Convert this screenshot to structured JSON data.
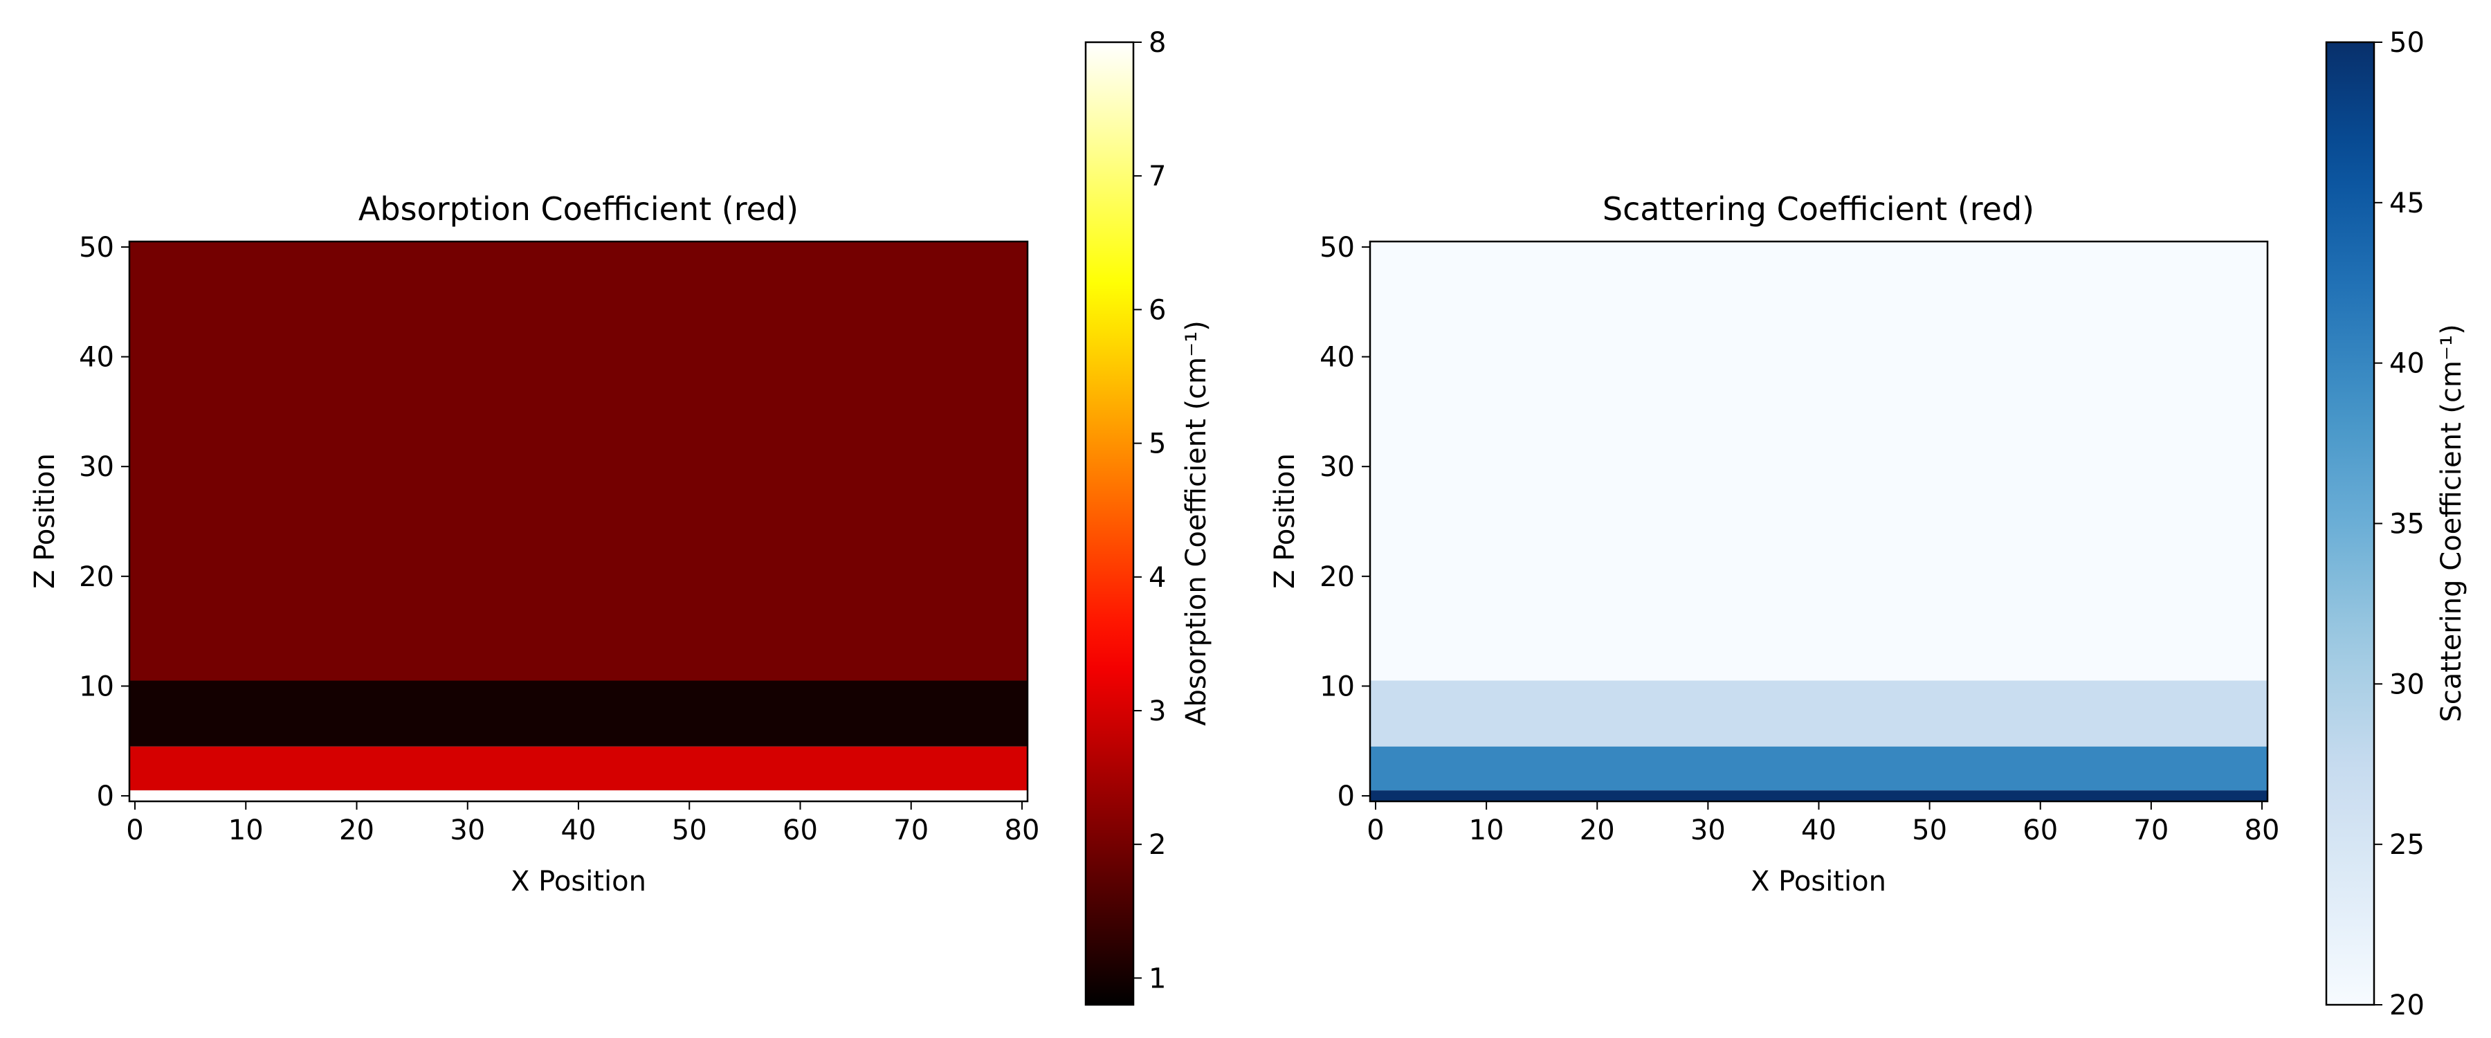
{
  "chart_data": [
    {
      "type": "heatmap",
      "title": "Absorption Coefficient (red)",
      "xlabel": "X Position",
      "ylabel": "Z Position",
      "xlim": [
        -0.5,
        80.5
      ],
      "ylim": [
        -0.5,
        50.5
      ],
      "xticks": [
        0,
        10,
        20,
        30,
        40,
        50,
        60,
        70,
        80
      ],
      "yticks": [
        0,
        10,
        20,
        30,
        40,
        50
      ],
      "layers": [
        {
          "z_from": -0.5,
          "z_to": 0.5,
          "value": 8.0
        },
        {
          "z_from": 0.5,
          "z_to": 4.5,
          "value": 3.0
        },
        {
          "z_from": 4.5,
          "z_to": 10.5,
          "value": 1.0
        },
        {
          "z_from": 10.5,
          "z_to": 50.5,
          "value": 2.0
        }
      ],
      "colorbar": {
        "label": "Absorption Coefficient (cm⁻¹)",
        "cmap": "hot",
        "range": [
          0.8,
          8
        ],
        "ticks": [
          1,
          2,
          3,
          4,
          5,
          6,
          7,
          8
        ]
      }
    },
    {
      "type": "heatmap",
      "title": "Scattering Coefficient (red)",
      "xlabel": "X Position",
      "ylabel": "Z Position",
      "xlim": [
        -0.5,
        80.5
      ],
      "ylim": [
        -0.5,
        50.5
      ],
      "xticks": [
        0,
        10,
        20,
        30,
        40,
        50,
        60,
        70,
        80
      ],
      "yticks": [
        0,
        10,
        20,
        30,
        40,
        50
      ],
      "layers": [
        {
          "z_from": -0.5,
          "z_to": 0.5,
          "value": 50.0
        },
        {
          "z_from": 0.5,
          "z_to": 4.5,
          "value": 40.0
        },
        {
          "z_from": 4.5,
          "z_to": 10.5,
          "value": 27.0
        },
        {
          "z_from": 10.5,
          "z_to": 50.5,
          "value": 20.0
        }
      ],
      "colorbar": {
        "label": "Scattering Coefficient (cm⁻¹)",
        "cmap": "blues",
        "range": [
          20,
          50
        ],
        "ticks": [
          20,
          25,
          30,
          35,
          40,
          45,
          50
        ]
      }
    }
  ]
}
